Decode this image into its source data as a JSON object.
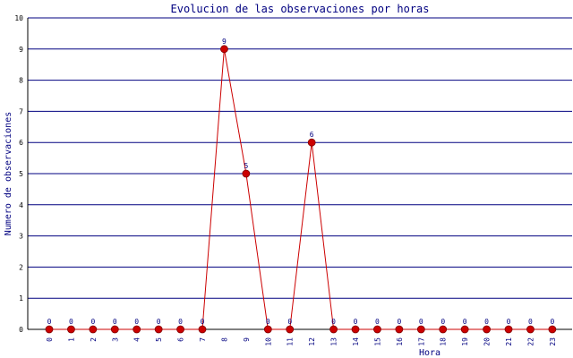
{
  "colors": {
    "grid": "#000080",
    "axis": "#000000",
    "line": "#cc0000",
    "marker": "#cc0000",
    "marker_edge": "#800000",
    "label": "#000080"
  },
  "chart_data": {
    "type": "line",
    "title": "Evolucion de las observaciones por horas",
    "xlabel": "Hora",
    "ylabel": "Numero de observaciones",
    "categories": [
      "0",
      "1",
      "2",
      "3",
      "4",
      "5",
      "6",
      "7",
      "8",
      "9",
      "10",
      "11",
      "12",
      "13",
      "14",
      "15",
      "16",
      "17",
      "18",
      "19",
      "20",
      "21",
      "22",
      "23"
    ],
    "series": [
      {
        "values": [
          0,
          0,
          0,
          0,
          0,
          0,
          0,
          0,
          9,
          5,
          0,
          0,
          6,
          0,
          0,
          0,
          0,
          0,
          0,
          0,
          0,
          0,
          0,
          0
        ]
      }
    ],
    "yticks": [
      "0",
      "1",
      "2",
      "3",
      "4",
      "5",
      "6",
      "7",
      "8",
      "9",
      "10"
    ],
    "ylim": [
      0,
      10
    ],
    "grid": "horizontal",
    "data_labels": true,
    "legend": "none"
  }
}
